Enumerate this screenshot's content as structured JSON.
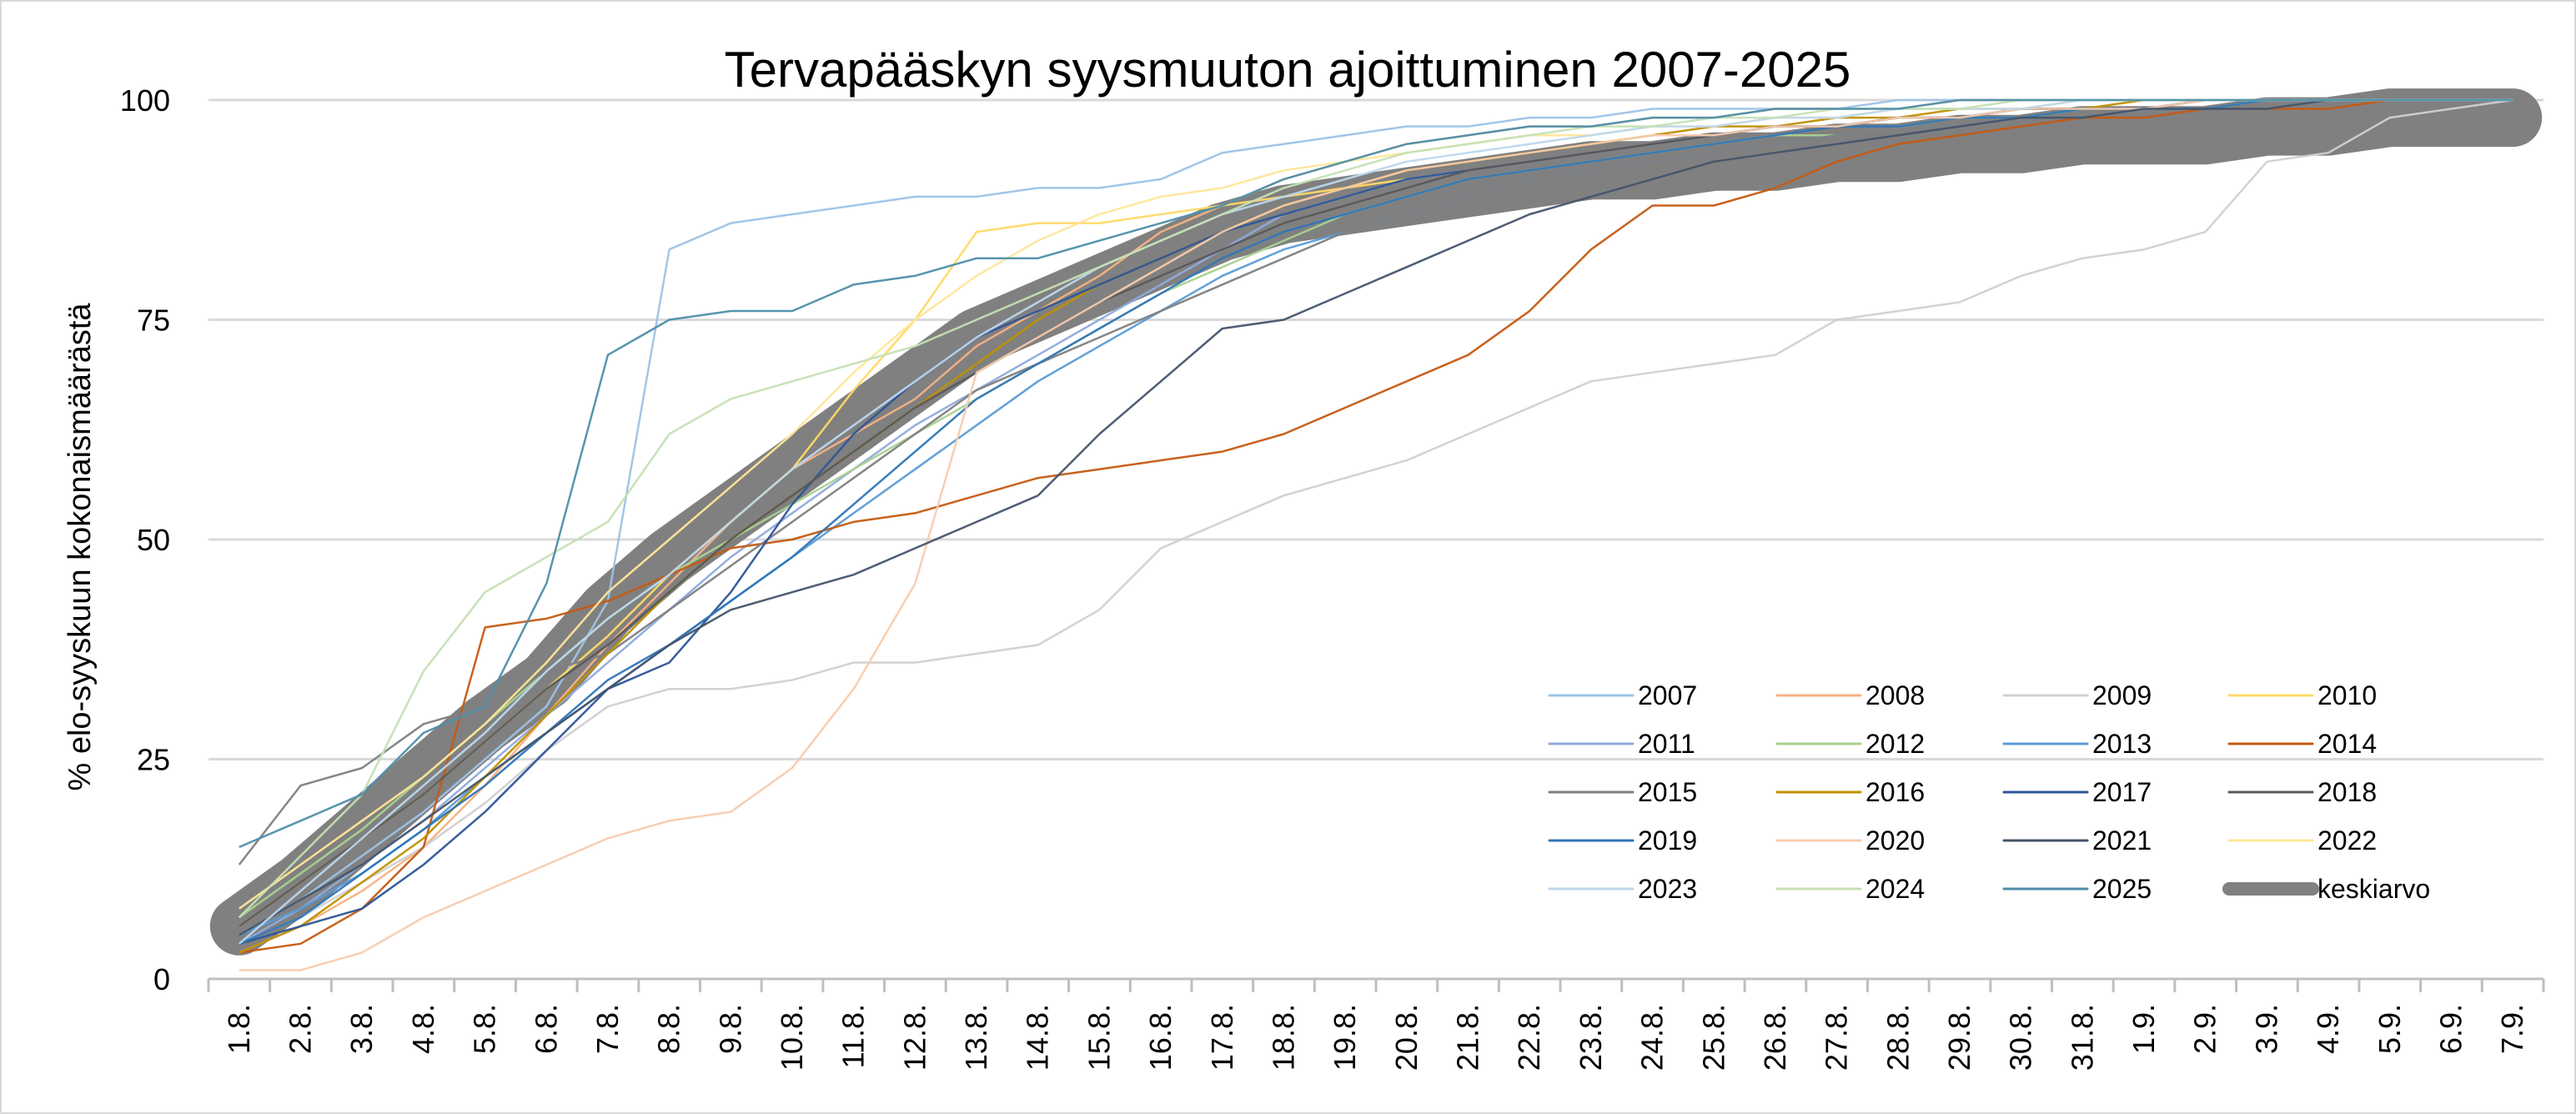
{
  "chart_data": {
    "type": "line",
    "title": "Tervapääskyn syysmuuton ajoittuminen 2007-2025",
    "xlabel": "",
    "ylabel": "% elo-syyskuun  kokonaismäärästä",
    "ylim": [
      0,
      100
    ],
    "yticks": [
      0,
      25,
      50,
      75,
      100
    ],
    "grid": "horizontal",
    "legend_position": "bottom-right",
    "categories": [
      "1.8.",
      "2.8.",
      "3.8.",
      "4.8.",
      "5.8.",
      "6.8.",
      "7.8.",
      "8.8.",
      "9.8.",
      "10.8.",
      "11.8.",
      "12.8.",
      "13.8.",
      "14.8.",
      "15.8.",
      "16.8.",
      "17.8.",
      "18.8.",
      "19.8.",
      "20.8.",
      "21.8.",
      "22.8.",
      "23.8.",
      "24.8.",
      "25.8.",
      "26.8.",
      "27.8.",
      "28.8.",
      "29.8.",
      "30.8.",
      "31.8.",
      "1.9.",
      "2.9.",
      "3.9.",
      "4.9.",
      "5.9.",
      "6.9.",
      "7.9."
    ],
    "series": [
      {
        "name": "2007",
        "color": "#9dc3e6",
        "values": [
          5,
          9,
          14,
          19,
          25,
          31,
          43,
          83,
          86,
          87,
          88,
          89,
          89,
          90,
          90,
          91,
          94,
          95,
          96,
          97,
          97,
          98,
          98,
          99,
          99,
          99,
          99,
          100,
          100,
          100,
          100,
          100,
          100,
          100,
          100,
          100,
          100,
          100
        ]
      },
      {
        "name": "2008",
        "color": "#f4b183",
        "values": [
          3,
          6,
          10,
          15,
          22,
          30,
          38,
          45,
          52,
          58,
          62,
          66,
          72,
          76,
          80,
          85,
          88,
          91,
          93,
          95,
          96,
          97,
          97,
          98,
          98,
          99,
          99,
          99,
          100,
          100,
          100,
          100,
          100,
          100,
          100,
          100,
          100,
          100
        ]
      },
      {
        "name": "2009",
        "color": "#d0d0d0",
        "values": [
          4,
          7,
          11,
          15,
          20,
          26,
          31,
          33,
          33,
          34,
          36,
          36,
          37,
          38,
          42,
          49,
          52,
          55,
          57,
          59,
          62,
          65,
          68,
          69,
          70,
          71,
          75,
          76,
          77,
          80,
          82,
          83,
          85,
          93,
          94,
          98,
          99,
          100
        ]
      },
      {
        "name": "2010",
        "color": "#ffd966",
        "values": [
          6,
          11,
          16,
          21,
          27,
          33,
          39,
          46,
          52,
          58,
          67,
          75,
          85,
          86,
          86,
          87,
          88,
          89,
          90,
          91,
          92,
          93,
          94,
          95,
          96,
          97,
          97,
          98,
          98,
          99,
          99,
          99,
          100,
          100,
          100,
          100,
          100,
          100
        ]
      },
      {
        "name": "2011",
        "color": "#8faadc",
        "values": [
          4,
          8,
          13,
          18,
          24,
          30,
          36,
          42,
          48,
          53,
          58,
          63,
          67,
          71,
          75,
          79,
          83,
          87,
          89,
          91,
          92,
          93,
          94,
          95,
          96,
          97,
          97,
          98,
          98,
          99,
          99,
          99,
          100,
          100,
          100,
          100,
          100,
          100
        ]
      },
      {
        "name": "2012",
        "color": "#a9d18e",
        "values": [
          7,
          12,
          17,
          23,
          29,
          35,
          41,
          46,
          50,
          54,
          58,
          62,
          66,
          70,
          74,
          78,
          81,
          84,
          87,
          89,
          91,
          92,
          93,
          94,
          95,
          96,
          96,
          97,
          98,
          98,
          99,
          99,
          99,
          100,
          100,
          100,
          100,
          100
        ]
      },
      {
        "name": "2013",
        "color": "#5b9bd5",
        "values": [
          5,
          8,
          12,
          17,
          23,
          28,
          33,
          38,
          43,
          48,
          53,
          58,
          63,
          68,
          72,
          76,
          80,
          83,
          85,
          87,
          89,
          91,
          92,
          93,
          94,
          95,
          96,
          97,
          97,
          98,
          98,
          99,
          99,
          99,
          100,
          100,
          100,
          100
        ]
      },
      {
        "name": "2014",
        "color": "#c55a11",
        "values": [
          3,
          4,
          8,
          15,
          40,
          41,
          43,
          46,
          49,
          50,
          52,
          53,
          55,
          57,
          58,
          59,
          60,
          62,
          65,
          68,
          71,
          76,
          83,
          88,
          88,
          90,
          93,
          95,
          96,
          97,
          98,
          98,
          99,
          99,
          99,
          100,
          100,
          100
        ]
      },
      {
        "name": "2015",
        "color": "#7f7f7f",
        "values": [
          13,
          22,
          24,
          29,
          31,
          35,
          37,
          42,
          47,
          52,
          57,
          62,
          67,
          70,
          73,
          76,
          79,
          82,
          85,
          87,
          89,
          91,
          92,
          93,
          94,
          95,
          96,
          97,
          97,
          98,
          98,
          99,
          99,
          99,
          100,
          100,
          100,
          100
        ]
      },
      {
        "name": "2016",
        "color": "#bf9000",
        "values": [
          3,
          6,
          11,
          16,
          23,
          30,
          37,
          44,
          50,
          55,
          60,
          65,
          70,
          75,
          79,
          82,
          85,
          88,
          90,
          92,
          93,
          94,
          95,
          96,
          97,
          97,
          98,
          98,
          99,
          99,
          99,
          100,
          100,
          100,
          100,
          100,
          100,
          100
        ]
      },
      {
        "name": "2017",
        "color": "#2e5597",
        "values": [
          4,
          6,
          8,
          13,
          19,
          26,
          33,
          36,
          44,
          54,
          62,
          68,
          73,
          76,
          79,
          82,
          85,
          87,
          89,
          91,
          92,
          93,
          94,
          95,
          96,
          97,
          97,
          98,
          98,
          99,
          99,
          99,
          100,
          100,
          100,
          100,
          100,
          100
        ]
      },
      {
        "name": "2018",
        "color": "#595959",
        "values": [
          6,
          11,
          16,
          21,
          27,
          33,
          38,
          44,
          50,
          55,
          60,
          65,
          69,
          73,
          77,
          80,
          83,
          86,
          88,
          90,
          92,
          93,
          94,
          95,
          96,
          97,
          97,
          98,
          98,
          99,
          99,
          99,
          100,
          100,
          100,
          100,
          100,
          100
        ]
      },
      {
        "name": "2019",
        "color": "#2f75b6",
        "values": [
          4,
          7,
          12,
          17,
          22,
          28,
          34,
          38,
          43,
          48,
          54,
          60,
          66,
          70,
          74,
          78,
          82,
          85,
          87,
          89,
          91,
          92,
          93,
          94,
          95,
          96,
          97,
          97,
          98,
          98,
          99,
          99,
          99,
          100,
          100,
          100,
          100,
          100
        ]
      },
      {
        "name": "2020",
        "color": "#f8cbad",
        "values": [
          1,
          1,
          3,
          7,
          10,
          13,
          16,
          18,
          19,
          24,
          33,
          45,
          69,
          73,
          77,
          81,
          85,
          88,
          90,
          92,
          93,
          94,
          95,
          96,
          96,
          97,
          97,
          98,
          98,
          99,
          99,
          99,
          100,
          100,
          100,
          100,
          100,
          100
        ]
      },
      {
        "name": "2021",
        "color": "#44546a",
        "values": [
          5,
          9,
          13,
          18,
          23,
          28,
          33,
          38,
          42,
          44,
          46,
          49,
          52,
          55,
          62,
          68,
          74,
          75,
          78,
          81,
          84,
          87,
          89,
          91,
          93,
          94,
          95,
          96,
          97,
          98,
          98,
          99,
          99,
          99,
          100,
          100,
          100,
          100
        ]
      },
      {
        "name": "2022",
        "color": "#ffe699",
        "values": [
          8,
          13,
          18,
          23,
          29,
          36,
          44,
          50,
          56,
          62,
          69,
          75,
          80,
          84,
          87,
          89,
          90,
          92,
          93,
          94,
          95,
          96,
          96,
          97,
          97,
          98,
          98,
          99,
          99,
          99,
          100,
          100,
          100,
          100,
          100,
          100,
          100,
          100
        ]
      },
      {
        "name": "2023",
        "color": "#bdd7ee",
        "values": [
          4,
          10,
          16,
          22,
          28,
          35,
          41,
          46,
          52,
          58,
          63,
          68,
          73,
          77,
          81,
          84,
          87,
          89,
          91,
          93,
          94,
          95,
          96,
          97,
          97,
          98,
          98,
          99,
          99,
          99,
          100,
          100,
          100,
          100,
          100,
          100,
          100,
          100
        ]
      },
      {
        "name": "2024",
        "color": "#c5e0b4",
        "values": [
          7,
          14,
          21,
          35,
          44,
          48,
          52,
          62,
          66,
          68,
          70,
          72,
          75,
          78,
          81,
          84,
          87,
          90,
          92,
          94,
          95,
          96,
          97,
          97,
          98,
          98,
          99,
          99,
          99,
          100,
          100,
          100,
          100,
          100,
          100,
          100,
          100,
          100
        ]
      },
      {
        "name": "2025",
        "color": "#4e8faa",
        "values": [
          15,
          18,
          21,
          28,
          31,
          45,
          71,
          75,
          76,
          76,
          79,
          80,
          82,
          82,
          84,
          86,
          88,
          91,
          93,
          95,
          96,
          97,
          97,
          98,
          98,
          99,
          99,
          99,
          100,
          100,
          100,
          100,
          100,
          100,
          100,
          100,
          100,
          100
        ]
      },
      {
        "name": "keskiarvo",
        "color": "#808080",
        "values": [
          6,
          11,
          17,
          23,
          29,
          34,
          42,
          48,
          53,
          58,
          63,
          68,
          73,
          76,
          79,
          82,
          85,
          87,
          88,
          89,
          90,
          91,
          92,
          92,
          93,
          93,
          94,
          94,
          95,
          95,
          96,
          96,
          96,
          97,
          97,
          98,
          98,
          98
        ]
      }
    ]
  }
}
